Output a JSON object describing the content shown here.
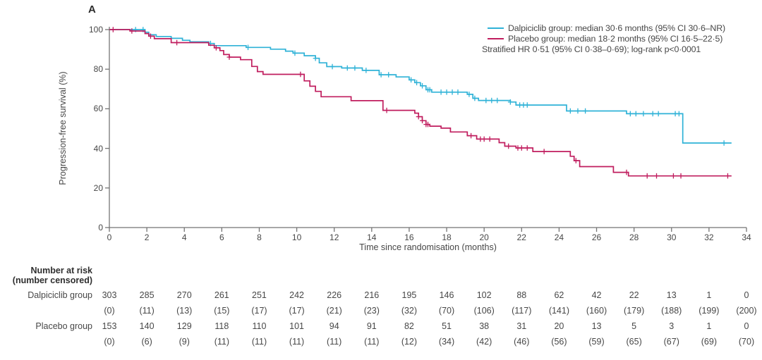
{
  "panel_label": "A",
  "colors": {
    "dalpiciclib": "#2fb2d7",
    "placebo": "#c01d5e",
    "axis": "#757575",
    "text": "#474747"
  },
  "legend": {
    "items": [
      {
        "key": "dalpiciclib",
        "label": "Dalpiciclib group: median 30·6 months (95% CI 30·6–NR)"
      },
      {
        "key": "placebo",
        "label": "Placebo group: median 18·2 months (95% CI 16·5–22·5)"
      }
    ],
    "note": "Stratified HR 0·51 (95% CI 0·38–0·69); log-rank p<0·0001"
  },
  "chart_data": {
    "type": "line",
    "subtype": "kaplan-meier-step",
    "title": "",
    "xlabel": "Time since randomisation (months)",
    "ylabel": "Progression-free survival (%)",
    "xlim": [
      0,
      34
    ],
    "ylim": [
      0,
      100
    ],
    "xticks": [
      0,
      2,
      4,
      6,
      8,
      10,
      12,
      14,
      16,
      18,
      20,
      22,
      24,
      26,
      28,
      30,
      32,
      34
    ],
    "yticks": [
      0,
      20,
      40,
      60,
      80,
      100
    ],
    "grid": false,
    "legend_position": "top-right",
    "series": [
      {
        "key": "dalpiciclib",
        "name": "Dalpiciclib group",
        "median_months": "30·6",
        "points": [
          [
            0,
            100
          ],
          [
            1.9,
            98.7
          ],
          [
            2.1,
            97.4
          ],
          [
            2.5,
            96.5
          ],
          [
            3.3,
            95.6
          ],
          [
            3.9,
            94.6
          ],
          [
            4.3,
            93.8
          ],
          [
            5.3,
            93.0
          ],
          [
            5.6,
            91.9
          ],
          [
            7.3,
            91.0
          ],
          [
            8.6,
            90.1
          ],
          [
            9.4,
            89.1
          ],
          [
            9.8,
            88.1
          ],
          [
            10.4,
            86.8
          ],
          [
            11.0,
            85.5
          ],
          [
            11.2,
            83.2
          ],
          [
            11.6,
            81.3
          ],
          [
            12.4,
            80.6
          ],
          [
            13.5,
            79.4
          ],
          [
            14.4,
            77.2
          ],
          [
            15.3,
            76.1
          ],
          [
            16.0,
            74.6
          ],
          [
            16.3,
            73.2
          ],
          [
            16.6,
            71.6
          ],
          [
            16.9,
            69.6
          ],
          [
            17.2,
            68.4
          ],
          [
            19.1,
            67.3
          ],
          [
            19.4,
            65.3
          ],
          [
            19.7,
            64.2
          ],
          [
            21.4,
            63.4
          ],
          [
            21.7,
            61.9
          ],
          [
            24.4,
            58.9
          ],
          [
            27.6,
            57.5
          ],
          [
            30.6,
            42.7
          ]
        ],
        "censor_times": [
          1.4,
          1.8,
          5.4,
          7.4,
          9.9,
          11.0,
          11.9,
          12.7,
          13.1,
          13.7,
          14.5,
          14.9,
          16.1,
          16.4,
          16.7,
          17.0,
          17.1,
          17.7,
          18.0,
          18.3,
          18.6,
          19.2,
          19.5,
          20.1,
          20.4,
          20.7,
          21.4,
          21.9,
          22.1,
          22.3,
          24.6,
          25.0,
          25.4,
          27.8,
          28.1,
          28.5,
          29.0,
          29.3,
          30.2,
          30.4,
          32.8
        ],
        "end_time": 33.2
      },
      {
        "key": "placebo",
        "name": "Placebo group",
        "median_months": "18·2",
        "points": [
          [
            0,
            100
          ],
          [
            1.1,
            99.3
          ],
          [
            1.9,
            98.0
          ],
          [
            2.1,
            96.7
          ],
          [
            2.4,
            95.4
          ],
          [
            3.3,
            93.4
          ],
          [
            5.3,
            92.1
          ],
          [
            5.6,
            90.8
          ],
          [
            5.9,
            89.4
          ],
          [
            6.1,
            87.4
          ],
          [
            6.4,
            86.1
          ],
          [
            7.0,
            84.8
          ],
          [
            7.6,
            81.4
          ],
          [
            7.9,
            78.8
          ],
          [
            8.2,
            77.4
          ],
          [
            10.4,
            74.1
          ],
          [
            10.7,
            71.4
          ],
          [
            11.0,
            68.8
          ],
          [
            11.3,
            66.1
          ],
          [
            12.9,
            64.1
          ],
          [
            14.6,
            59.2
          ],
          [
            16.3,
            57.8
          ],
          [
            16.5,
            56.0
          ],
          [
            16.7,
            54.0
          ],
          [
            16.9,
            52.1
          ],
          [
            17.1,
            51.2
          ],
          [
            17.7,
            50.2
          ],
          [
            18.2,
            48.3
          ],
          [
            19.1,
            46.4
          ],
          [
            19.6,
            44.7
          ],
          [
            20.8,
            42.9
          ],
          [
            21.1,
            41.1
          ],
          [
            21.7,
            40.2
          ],
          [
            22.6,
            38.4
          ],
          [
            24.6,
            36.0
          ],
          [
            24.8,
            33.8
          ],
          [
            25.1,
            30.8
          ],
          [
            26.9,
            27.9
          ],
          [
            27.7,
            26.1
          ]
        ],
        "censor_times": [
          0.2,
          1.2,
          2.2,
          3.6,
          5.7,
          6.4,
          10.2,
          14.8,
          16.5,
          16.7,
          16.9,
          17.0,
          19.3,
          19.8,
          20.0,
          20.3,
          21.3,
          21.8,
          22.0,
          22.3,
          23.2,
          24.9,
          27.6,
          28.7,
          29.2,
          30.1,
          30.5,
          33.0
        ],
        "end_time": 33.2
      }
    ]
  },
  "risk_table": {
    "header_line1": "Number at risk",
    "header_line2": "(number censored)",
    "timepoints": [
      0,
      2,
      4,
      6,
      8,
      10,
      12,
      14,
      16,
      18,
      20,
      22,
      24,
      26,
      28,
      30,
      32,
      34
    ],
    "rows": [
      {
        "label": "Dalpiciclib group",
        "at_risk": [
          303,
          285,
          270,
          261,
          251,
          242,
          226,
          216,
          195,
          146,
          102,
          88,
          62,
          42,
          22,
          13,
          1,
          0
        ],
        "censored": [
          0,
          11,
          13,
          15,
          17,
          17,
          21,
          23,
          32,
          70,
          106,
          117,
          141,
          160,
          179,
          188,
          199,
          200
        ]
      },
      {
        "label": "Placebo group",
        "at_risk": [
          153,
          140,
          129,
          118,
          110,
          101,
          94,
          91,
          82,
          51,
          38,
          31,
          20,
          13,
          5,
          3,
          1,
          0
        ],
        "censored": [
          0,
          6,
          9,
          11,
          11,
          11,
          11,
          11,
          12,
          34,
          42,
          46,
          56,
          59,
          65,
          67,
          69,
          70
        ]
      }
    ]
  }
}
